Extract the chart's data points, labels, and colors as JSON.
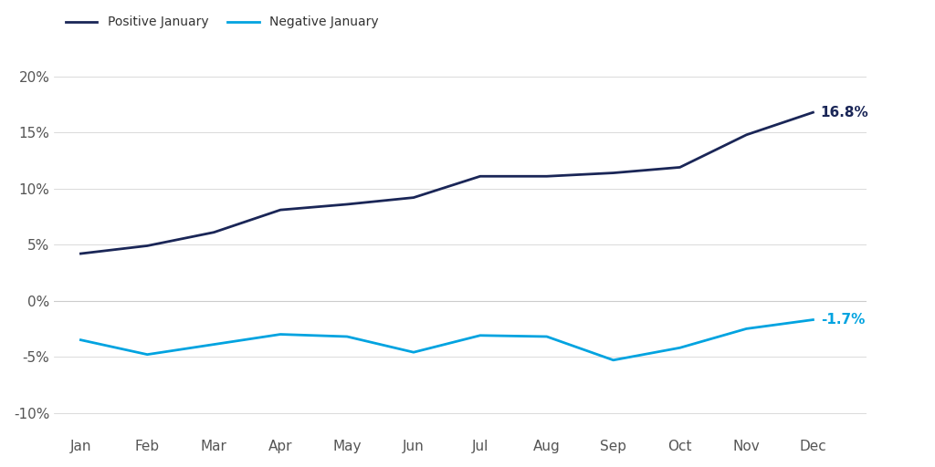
{
  "months": [
    "Jan",
    "Feb",
    "Mar",
    "Apr",
    "May",
    "Jun",
    "Jul",
    "Aug",
    "Sep",
    "Oct",
    "Nov",
    "Dec"
  ],
  "positive_january": [
    4.2,
    4.9,
    6.1,
    8.1,
    8.6,
    9.2,
    11.1,
    11.1,
    11.4,
    11.9,
    14.8,
    16.8
  ],
  "negative_january": [
    -3.5,
    -4.8,
    -3.9,
    -3.0,
    -3.2,
    -4.6,
    -3.1,
    -3.2,
    -5.3,
    -4.2,
    -2.5,
    -1.7
  ],
  "positive_color": "#1a2657",
  "negative_color": "#00a3e0",
  "positive_label": "Positive January",
  "negative_label": "Negative January",
  "positive_end_label": "16.8%",
  "negative_end_label": "-1.7%",
  "ylim": [
    -12,
    22
  ],
  "yticks": [
    -10,
    -5,
    0,
    5,
    10,
    15,
    20
  ],
  "background_color": "#ffffff",
  "grid_color": "#cccccc",
  "line_width": 2.0,
  "legend_fontsize": 10,
  "tick_fontsize": 11,
  "label_fontsize": 11
}
